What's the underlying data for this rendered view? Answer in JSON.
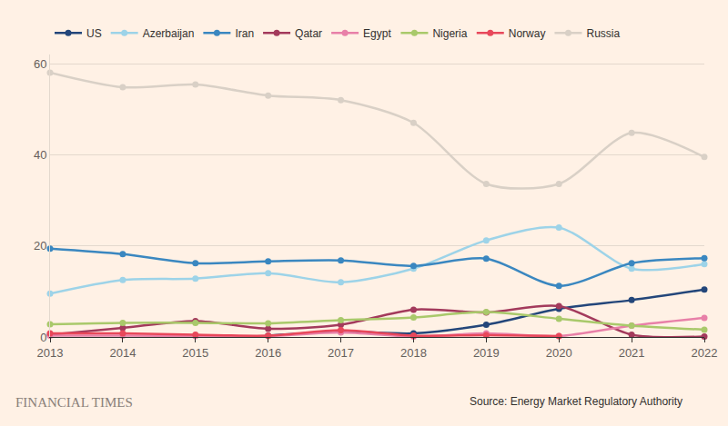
{
  "chart_data": {
    "type": "line",
    "x": [
      2013,
      2014,
      2015,
      2016,
      2017,
      2018,
      2019,
      2020,
      2021,
      2022
    ],
    "xlim": [
      2013,
      2022
    ],
    "xticks": [
      2013,
      2014,
      2015,
      2016,
      2017,
      2018,
      2019,
      2020,
      2021,
      2022
    ],
    "ylim": [
      0,
      62
    ],
    "yticks": [
      0,
      20,
      40,
      60
    ],
    "grid": true,
    "legend": "top-left",
    "marker": "circle",
    "line_style": "spline",
    "annotations": [
      "FINANCIAL TIMES",
      "Source: Energy Market Regulatory Authority"
    ],
    "series": [
      {
        "name": "US",
        "color": "#23467a",
        "values": [
          null,
          null,
          null,
          0.3,
          1.2,
          0.8,
          2.7,
          6.2,
          8.1,
          10.4
        ]
      },
      {
        "name": "Azerbaijan",
        "color": "#9dd3e8",
        "values": [
          9.5,
          12.5,
          12.8,
          14,
          12,
          15,
          21.2,
          24,
          15,
          16
        ]
      },
      {
        "name": "Iran",
        "color": "#3a87c0",
        "values": [
          19.4,
          18.2,
          16.2,
          16.6,
          16.8,
          15.6,
          17.2,
          11.2,
          16.2,
          17.3
        ]
      },
      {
        "name": "Qatar",
        "color": "#a33a5c",
        "values": [
          0.5,
          2,
          3.5,
          1.8,
          2.7,
          6,
          5.4,
          6.8,
          0.5,
          0.1
        ]
      },
      {
        "name": "Egypt",
        "color": "#e880a8",
        "values": [
          0.3,
          0.3,
          0.2,
          0.2,
          1,
          0.1,
          0.8,
          0.2,
          2.5,
          4.2
        ]
      },
      {
        "name": "Nigeria",
        "color": "#a9c96b",
        "values": [
          2.8,
          3.1,
          3.1,
          3,
          3.7,
          4.3,
          5.5,
          4,
          2.5,
          1.6
        ]
      },
      {
        "name": "Norway",
        "color": "#e8485b",
        "values": [
          0.8,
          0.8,
          0.5,
          0.3,
          1.5,
          0.3,
          0.4,
          0.2,
          null,
          null
        ]
      },
      {
        "name": "Russia",
        "color": "#d9d0c6",
        "values": [
          58,
          54.8,
          55.4,
          53,
          52,
          47,
          33.6,
          33.6,
          44.8,
          39.5
        ]
      }
    ]
  }
}
